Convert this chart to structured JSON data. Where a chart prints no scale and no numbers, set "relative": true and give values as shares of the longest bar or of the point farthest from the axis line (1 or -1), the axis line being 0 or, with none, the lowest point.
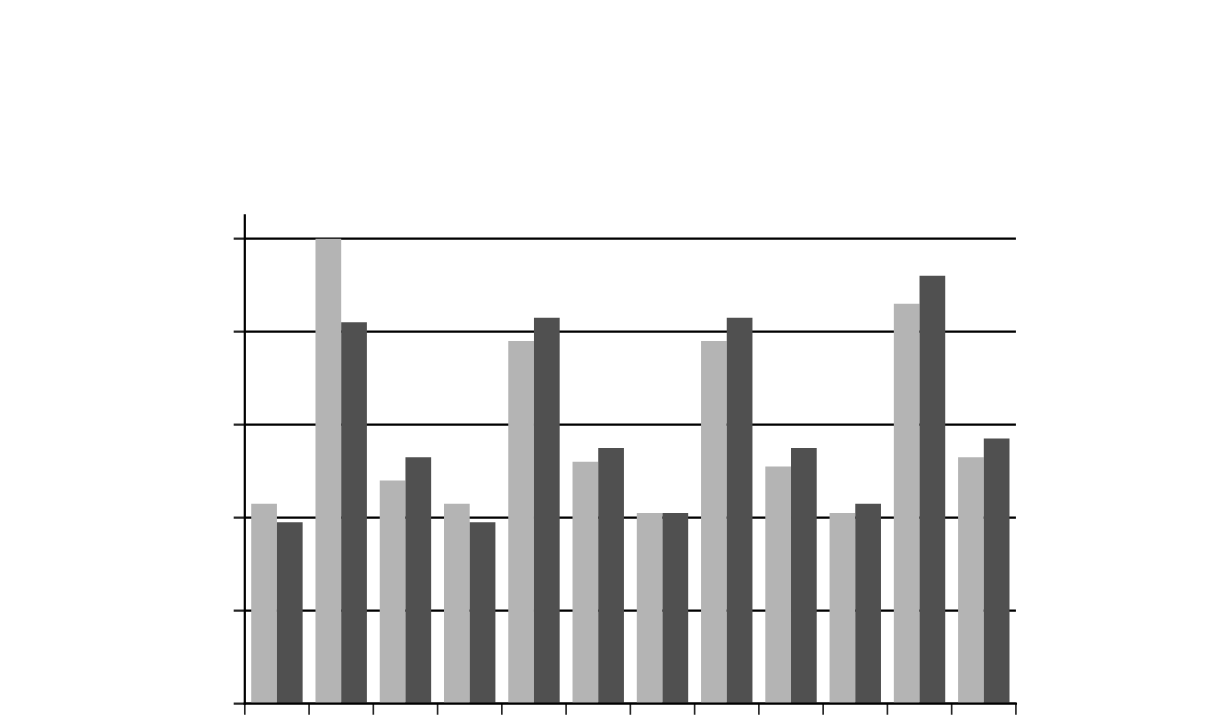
{
  "chart_data": {
    "type": "bar",
    "relative": true,
    "grid": "y",
    "categories": [
      null,
      null,
      null,
      null,
      null,
      null,
      null,
      null,
      null,
      null,
      null,
      null
    ],
    "series": [
      {
        "color": "#b4b4b4",
        "values": [
          0.43,
          1.0,
          0.48,
          0.43,
          0.78,
          0.52,
          0.41,
          0.78,
          0.51,
          0.41,
          0.86,
          0.53
        ]
      },
      {
        "color": "#505050",
        "values": [
          0.39,
          0.82,
          0.53,
          0.39,
          0.83,
          0.55,
          0.41,
          0.83,
          0.55,
          0.43,
          0.92,
          0.57
        ]
      }
    ]
  }
}
